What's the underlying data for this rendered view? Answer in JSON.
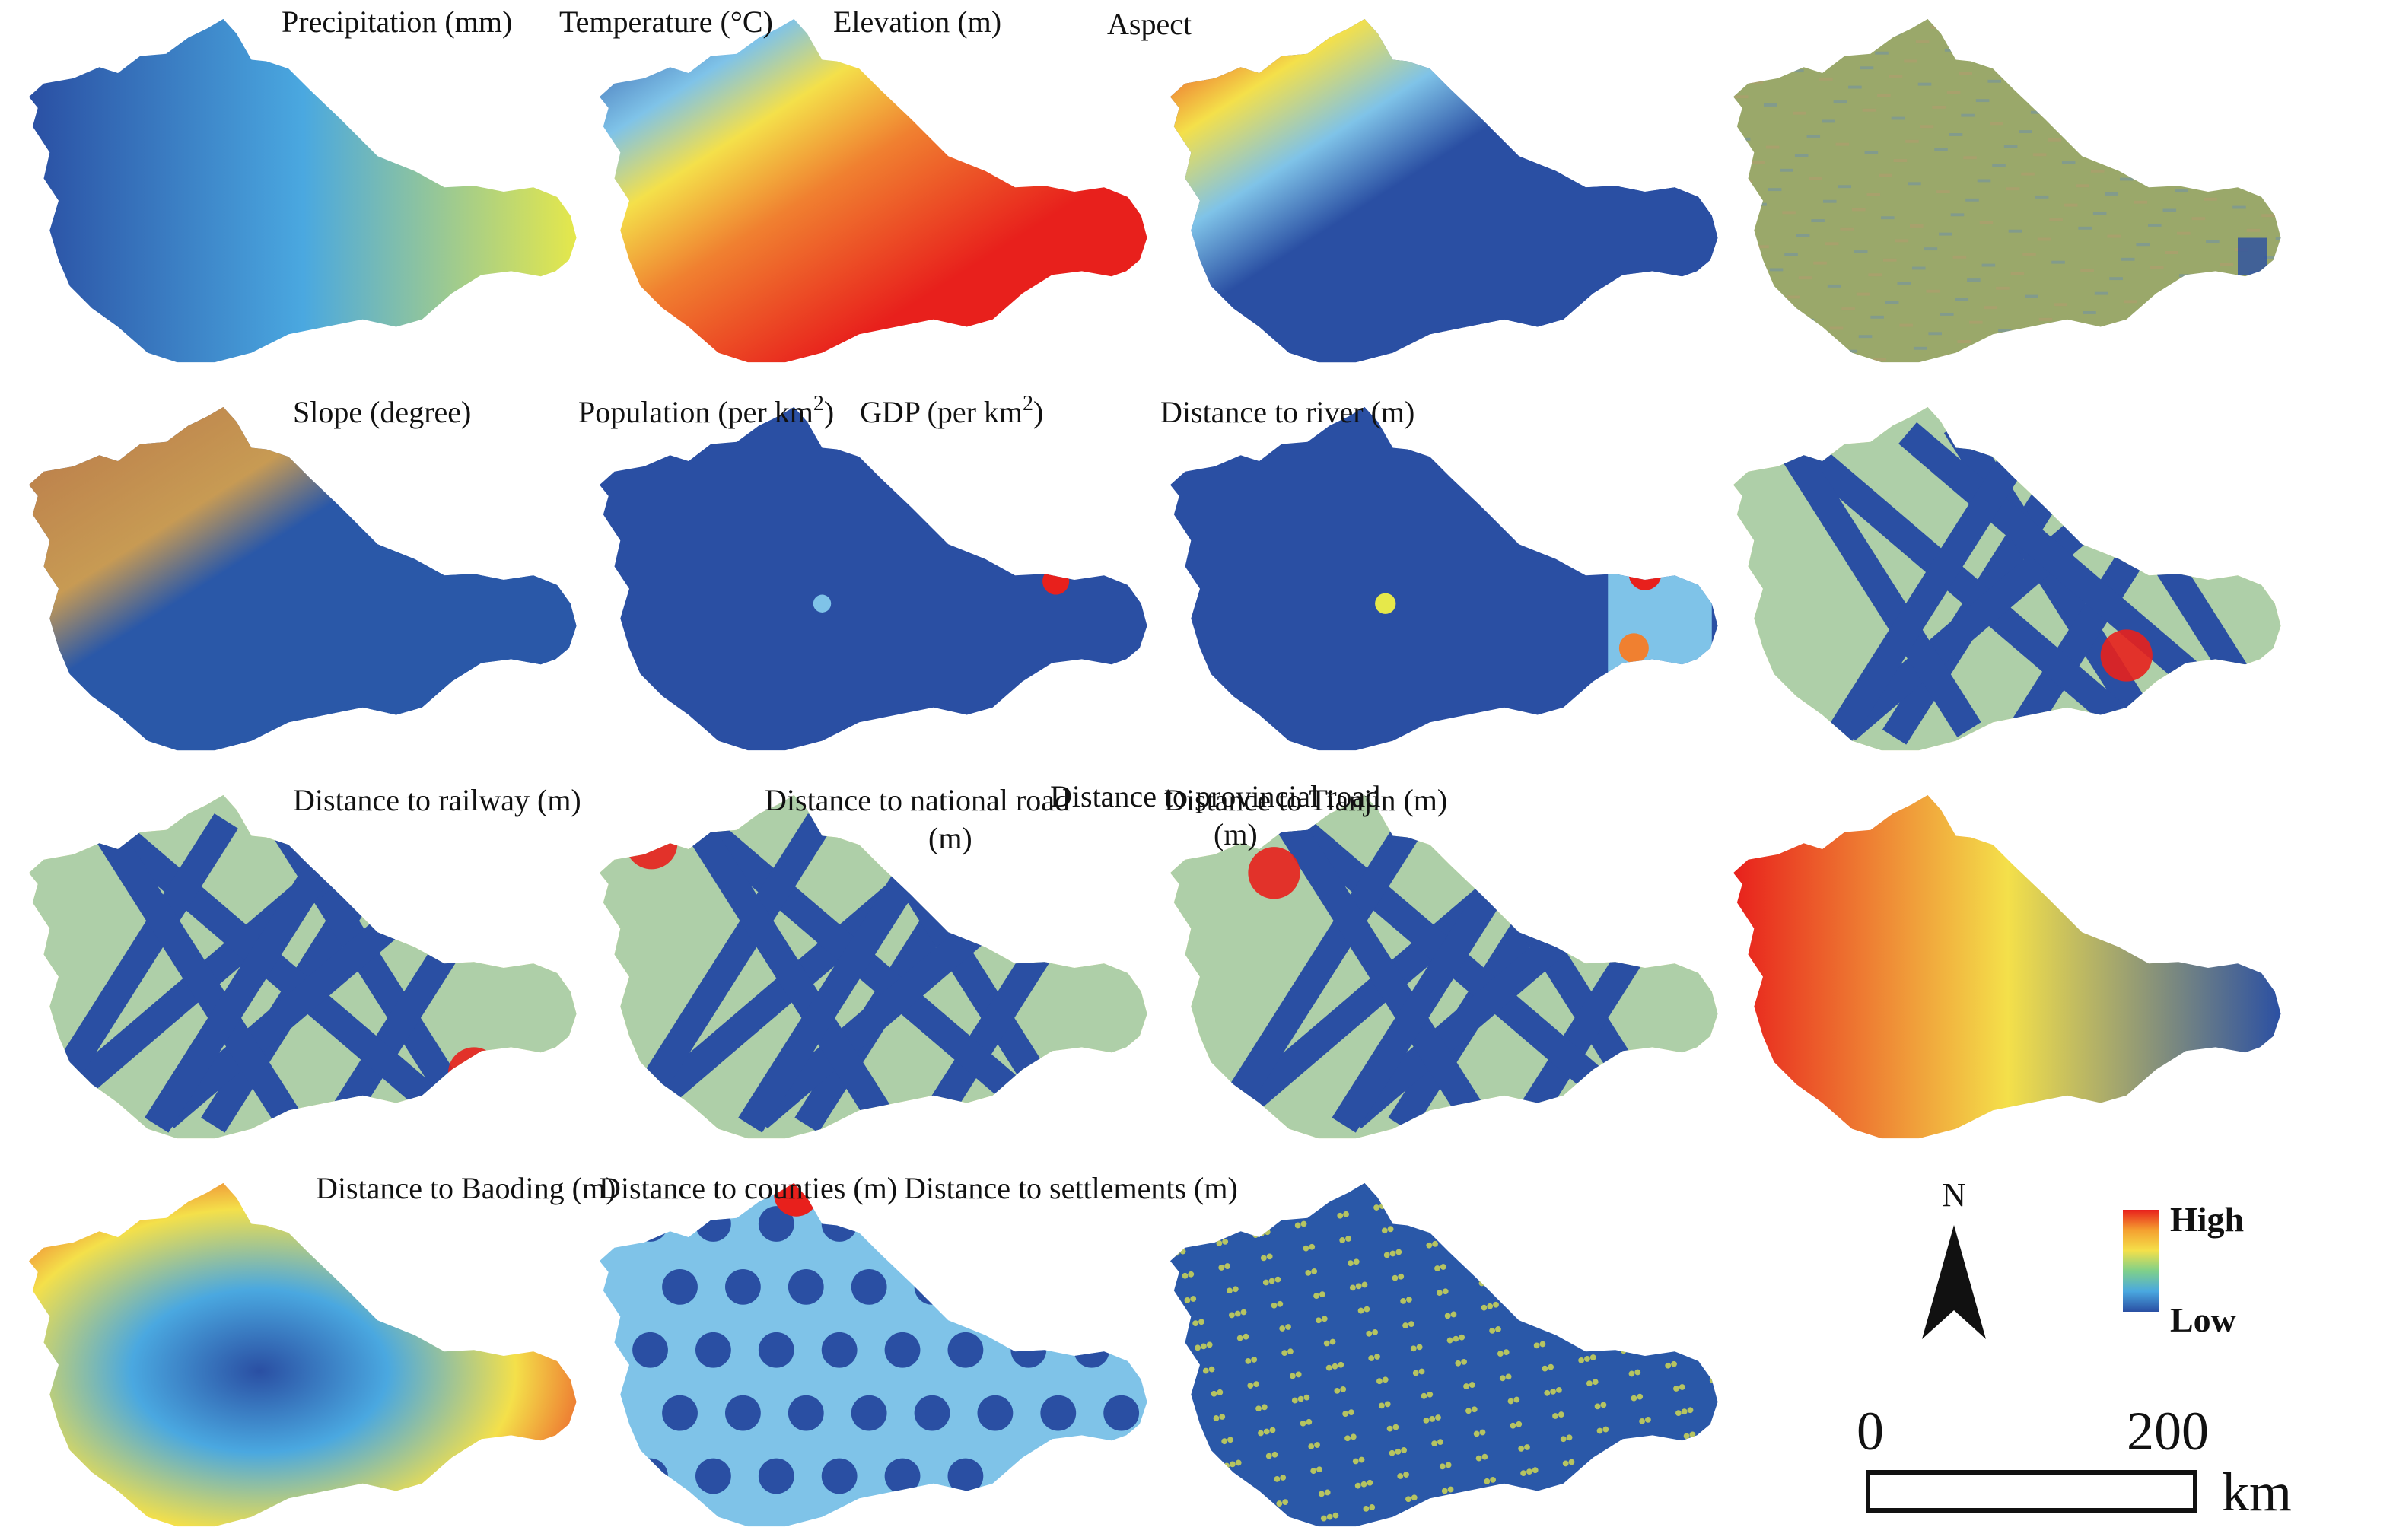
{
  "panels": [
    {
      "id": "precipitation",
      "title": "Precipitation (mm)",
      "pattern": "gradient-h",
      "colors": [
        "#2a4fa3",
        "#4aa8e0",
        "#e6e84a"
      ]
    },
    {
      "id": "temperature",
      "title": "Temperature (°C)",
      "pattern": "elev-rev",
      "colors": [
        "#2a4fa3",
        "#f4e04a",
        "#e8201c"
      ]
    },
    {
      "id": "elevation",
      "title": "Elevation (m)",
      "pattern": "elev",
      "colors": [
        "#2a4fa3",
        "#f4e04a",
        "#e8201c"
      ]
    },
    {
      "id": "aspect",
      "title": "Aspect",
      "pattern": "noise",
      "colors": [
        "#9aa86a",
        "#b49a6e",
        "#6f8fa8"
      ]
    },
    {
      "id": "slope",
      "title": "Slope (degree)",
      "pattern": "slope",
      "colors": [
        "#2a58a8",
        "#c87a3e",
        "#d9a24a"
      ]
    },
    {
      "id": "population",
      "title_main": "Population (per km",
      "title_sup": "2",
      "title_tail": ")",
      "pattern": "flat-hotspot",
      "colors": [
        "#2a4fa3",
        "#e8201c"
      ]
    },
    {
      "id": "gdp",
      "title_main": "GDP (per km",
      "title_sup": "2",
      "title_tail": ")",
      "pattern": "flat-hotspot2",
      "colors": [
        "#2a4fa3",
        "#e8201c"
      ]
    },
    {
      "id": "dist-river",
      "title": "Distance to river (m)",
      "pattern": "bands",
      "colors": [
        "#2a4fa3",
        "#f4e04a",
        "#e8201c"
      ]
    },
    {
      "id": "dist-railway",
      "title": "Distance to railway (m)",
      "pattern": "bands",
      "colors": [
        "#2a4fa3",
        "#f4e04a",
        "#e8201c"
      ]
    },
    {
      "id": "dist-national",
      "title_line1": "Distance to national road",
      "title_line2": "(m)",
      "pattern": "bands",
      "colors": [
        "#2a4fa3",
        "#f4e04a",
        "#e8201c"
      ]
    },
    {
      "id": "dist-provincial",
      "title_line1": "Distance to provincial road",
      "title_line2": "(m)",
      "pattern": "bands",
      "colors": [
        "#2a4fa3",
        "#f4e04a",
        "#e8201c"
      ]
    },
    {
      "id": "dist-tianjin",
      "title": "Distance to Tianjin (m)",
      "pattern": "gradient-h-rev",
      "colors": [
        "#e8201c",
        "#f4e04a",
        "#2a4fa3"
      ]
    },
    {
      "id": "dist-baoding",
      "title": "Distance to Baoding (m)",
      "pattern": "radial",
      "colors": [
        "#2a4fa3",
        "#4aa8e0",
        "#f4e04a",
        "#e8201c"
      ]
    },
    {
      "id": "dist-counties",
      "title": "Distance to counties (m)",
      "pattern": "dots",
      "colors": [
        "#2a4fa3",
        "#7fc3e8",
        "#f4e04a"
      ]
    },
    {
      "id": "dist-settlements",
      "title": "Distance to settlements (m)",
      "pattern": "speckle",
      "colors": [
        "#2a58a8",
        "#e6e84a"
      ]
    }
  ],
  "legend": {
    "north": "N",
    "high": "High",
    "low": "Low",
    "ramp": [
      "#e8201c",
      "#f4a030",
      "#f4e04a",
      "#7fd08a",
      "#4aa8e0",
      "#2a4fa3"
    ]
  },
  "scalebar": {
    "start": "0",
    "end": "200",
    "unit": "km"
  }
}
